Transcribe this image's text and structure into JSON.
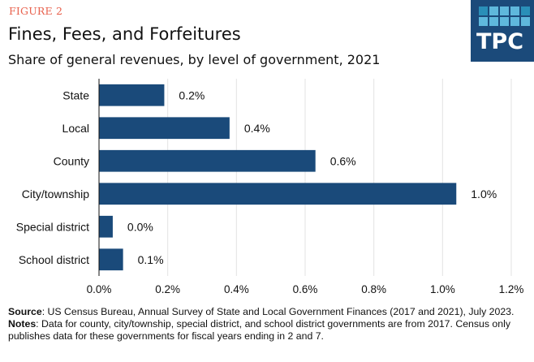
{
  "header": {
    "figure_label": "FIGURE 2",
    "title": "Fines, Fees, and Forfeitures",
    "subtitle": "Share of general revenues, by level of government, 2021"
  },
  "logo": {
    "text": "TPC",
    "bg_color": "#1b4a7a",
    "tile_colors": [
      "#2a8fb8",
      "#5fb8dc"
    ]
  },
  "chart_data": {
    "type": "bar",
    "orientation": "horizontal",
    "title": "Fines, Fees, and Forfeitures",
    "subtitle": "Share of general revenues, by level of government, 2021",
    "xlabel": "",
    "ylabel": "",
    "categories": [
      "State",
      "Local",
      "County",
      "City/township",
      "Special district",
      "School district"
    ],
    "values": [
      0.19,
      0.38,
      0.63,
      1.04,
      0.04,
      0.07
    ],
    "data_labels": [
      "0.2%",
      "0.4%",
      "0.6%",
      "1.0%",
      "0.0%",
      "0.1%"
    ],
    "xlim": [
      0,
      1.2
    ],
    "xticks": [
      0,
      0.2,
      0.4,
      0.6,
      0.8,
      1.0,
      1.2
    ],
    "xtick_labels": [
      "0.0%",
      "0.2%",
      "0.4%",
      "0.6%",
      "0.8%",
      "1.0%",
      "1.2%"
    ],
    "grid": "vertical",
    "legend": "none",
    "bar_color": "#1a4a7a"
  },
  "footer": {
    "source_label": "Source",
    "source_text": ": US Census Bureau, Annual Survey of State and Local Government Finances (2017 and 2021), July 2023.",
    "notes_label": "Notes",
    "notes_text": ": Data for county, city/township, special district, and school district governments are from 2017. Census only publishes data for these governments for fiscal years ending in 2 and 7."
  }
}
